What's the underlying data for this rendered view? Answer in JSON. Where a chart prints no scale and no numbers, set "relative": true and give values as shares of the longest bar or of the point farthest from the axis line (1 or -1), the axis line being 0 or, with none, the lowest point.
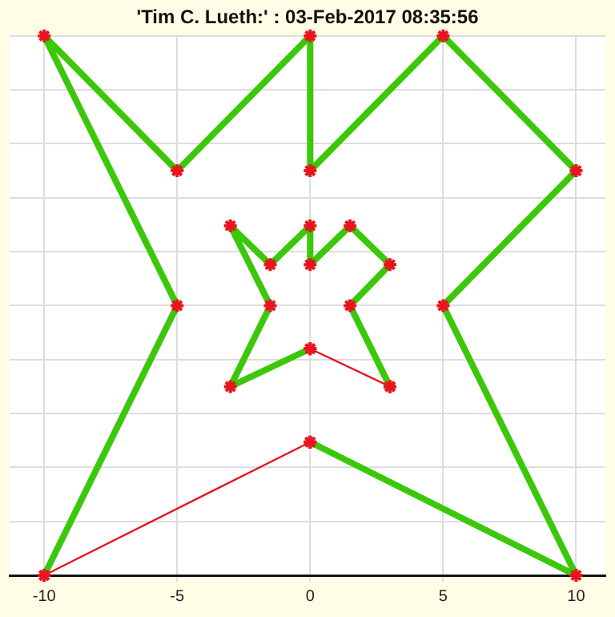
{
  "chart_data": {
    "type": "line",
    "title": "'Tim C. Lueth:' : 03-Feb-2017 08:35:56",
    "relative": true,
    "xlim": [
      -11.3,
      11.1
    ],
    "xticks": [
      -10,
      -5,
      0,
      5,
      10
    ],
    "tick_labels": "x",
    "grid": true,
    "legend": false,
    "marker": "cross",
    "series": [
      {
        "color": "#3cc80a",
        "x": [
          -10,
          -5,
          -10,
          -5,
          0,
          0,
          5,
          10,
          5,
          10,
          0
        ],
        "values": [
          0,
          0.5,
          1,
          0.75,
          1,
          0.75,
          1,
          0.75,
          0.5,
          0,
          0.247
        ]
      },
      {
        "color": "#e8141e",
        "x": [
          0,
          -10
        ],
        "values": [
          0.247,
          0
        ]
      },
      {
        "color": "#3cc80a",
        "x": [
          0,
          -3,
          -1.5,
          -3,
          -1.5,
          0,
          0,
          1.5,
          3,
          1.5,
          3
        ],
        "values": [
          0.42,
          0.35,
          0.5,
          0.648,
          0.576,
          0.648,
          0.576,
          0.648,
          0.576,
          0.5,
          0.35
        ]
      },
      {
        "color": "#e8141e",
        "x": [
          3,
          0
        ],
        "values": [
          0.35,
          0.42
        ]
      }
    ]
  }
}
